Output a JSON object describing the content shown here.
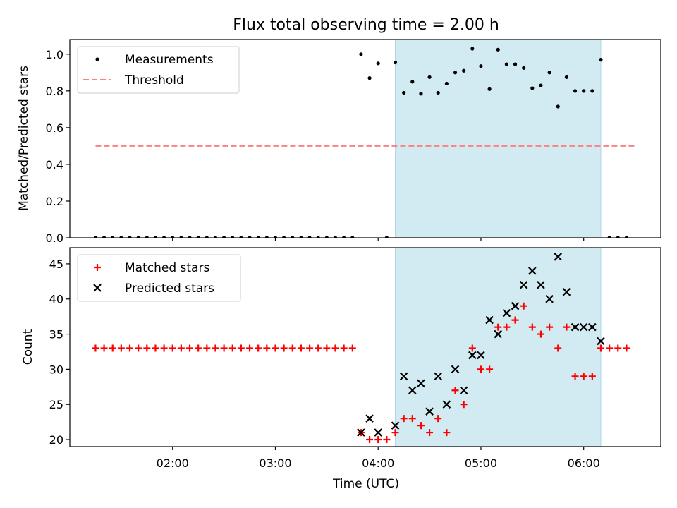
{
  "chart_data": [
    {
      "type": "scatter",
      "title": "Flux total observing time = 2.00 h",
      "ylabel": "Matched/Predicted stars",
      "xlabel": "",
      "ylim": [
        0,
        1.08
      ],
      "yticks": [
        "0.0",
        "0.2",
        "0.4",
        "0.6",
        "0.8",
        "1.0"
      ],
      "legend": {
        "placement": "top-left",
        "entries": [
          "Measurements",
          "Threshold"
        ]
      },
      "series": [
        {
          "name": "Measurements",
          "marker": "dot",
          "color": "#000000",
          "points": [
            [
              "01:15",
              0
            ],
            [
              "01:20",
              0
            ],
            [
              "01:25",
              0
            ],
            [
              "01:30",
              0
            ],
            [
              "01:35",
              0
            ],
            [
              "01:40",
              0
            ],
            [
              "01:45",
              0
            ],
            [
              "01:50",
              0
            ],
            [
              "01:55",
              0
            ],
            [
              "02:00",
              0
            ],
            [
              "02:05",
              0
            ],
            [
              "02:10",
              0
            ],
            [
              "02:15",
              0
            ],
            [
              "02:20",
              0
            ],
            [
              "02:25",
              0
            ],
            [
              "02:30",
              0
            ],
            [
              "02:35",
              0
            ],
            [
              "02:40",
              0
            ],
            [
              "02:45",
              0
            ],
            [
              "02:50",
              0
            ],
            [
              "02:55",
              0
            ],
            [
              "03:00",
              0
            ],
            [
              "03:05",
              0
            ],
            [
              "03:10",
              0
            ],
            [
              "03:15",
              0
            ],
            [
              "03:20",
              0
            ],
            [
              "03:25",
              0
            ],
            [
              "03:30",
              0
            ],
            [
              "03:35",
              0
            ],
            [
              "03:40",
              0
            ],
            [
              "03:45",
              0
            ],
            [
              "03:50",
              1.0
            ],
            [
              "03:55",
              0.87
            ],
            [
              "04:00",
              0.95
            ],
            [
              "04:05",
              0.0
            ],
            [
              "04:10",
              0.955
            ],
            [
              "04:15",
              0.79
            ],
            [
              "04:20",
              0.85
            ],
            [
              "04:25",
              0.785
            ],
            [
              "04:30",
              0.875
            ],
            [
              "04:35",
              0.79
            ],
            [
              "04:40",
              0.84
            ],
            [
              "04:45",
              0.9
            ],
            [
              "04:50",
              0.91
            ],
            [
              "04:55",
              1.03
            ],
            [
              "05:00",
              0.935
            ],
            [
              "05:05",
              0.81
            ],
            [
              "05:10",
              1.025
            ],
            [
              "05:15",
              0.945
            ],
            [
              "05:20",
              0.945
            ],
            [
              "05:25",
              0.925
            ],
            [
              "05:30",
              0.815
            ],
            [
              "05:35",
              0.83
            ],
            [
              "05:40",
              0.9
            ],
            [
              "05:45",
              0.715
            ],
            [
              "05:50",
              0.875
            ],
            [
              "05:55",
              0.8
            ],
            [
              "06:00",
              0.8
            ],
            [
              "06:05",
              0.8
            ],
            [
              "06:10",
              0.97
            ],
            [
              "06:15",
              0
            ],
            [
              "06:20",
              0
            ],
            [
              "06:25",
              0
            ]
          ]
        },
        {
          "name": "Threshold",
          "marker": "dashed-line",
          "color": "#ff7f7f",
          "points": [
            [
              "01:15",
              0.5
            ],
            [
              "06:30",
              0.5
            ]
          ]
        }
      ],
      "shaded_region": {
        "x_start": "04:10",
        "x_end": "06:10",
        "color": "#add8e6"
      }
    },
    {
      "type": "scatter",
      "title": "",
      "ylabel": "Count",
      "xlabel": "Time (UTC)",
      "ylim": [
        19,
        47.3
      ],
      "yticks": [
        "20",
        "25",
        "30",
        "35",
        "40",
        "45"
      ],
      "xticks": [
        "02:00",
        "03:00",
        "04:00",
        "05:00",
        "06:00"
      ],
      "legend": {
        "placement": "top-left",
        "entries": [
          "Matched stars",
          "Predicted stars"
        ]
      },
      "series": [
        {
          "name": "Matched stars",
          "marker": "plus",
          "color": "#ff0000",
          "points": [
            [
              "01:15",
              33
            ],
            [
              "01:20",
              33
            ],
            [
              "01:25",
              33
            ],
            [
              "01:30",
              33
            ],
            [
              "01:35",
              33
            ],
            [
              "01:40",
              33
            ],
            [
              "01:45",
              33
            ],
            [
              "01:50",
              33
            ],
            [
              "01:55",
              33
            ],
            [
              "02:00",
              33
            ],
            [
              "02:05",
              33
            ],
            [
              "02:10",
              33
            ],
            [
              "02:15",
              33
            ],
            [
              "02:20",
              33
            ],
            [
              "02:25",
              33
            ],
            [
              "02:30",
              33
            ],
            [
              "02:35",
              33
            ],
            [
              "02:40",
              33
            ],
            [
              "02:45",
              33
            ],
            [
              "02:50",
              33
            ],
            [
              "02:55",
              33
            ],
            [
              "03:00",
              33
            ],
            [
              "03:05",
              33
            ],
            [
              "03:10",
              33
            ],
            [
              "03:15",
              33
            ],
            [
              "03:20",
              33
            ],
            [
              "03:25",
              33
            ],
            [
              "03:30",
              33
            ],
            [
              "03:35",
              33
            ],
            [
              "03:40",
              33
            ],
            [
              "03:45",
              33
            ],
            [
              "03:50",
              21
            ],
            [
              "03:55",
              20
            ],
            [
              "04:00",
              20
            ],
            [
              "04:05",
              20
            ],
            [
              "04:10",
              21
            ],
            [
              "04:15",
              23
            ],
            [
              "04:20",
              23
            ],
            [
              "04:25",
              22
            ],
            [
              "04:30",
              21
            ],
            [
              "04:35",
              23
            ],
            [
              "04:40",
              21
            ],
            [
              "04:45",
              27
            ],
            [
              "04:50",
              25
            ],
            [
              "04:55",
              33
            ],
            [
              "05:00",
              30
            ],
            [
              "05:05",
              30
            ],
            [
              "05:10",
              36
            ],
            [
              "05:15",
              36
            ],
            [
              "05:20",
              37
            ],
            [
              "05:25",
              39
            ],
            [
              "05:30",
              36
            ],
            [
              "05:35",
              35
            ],
            [
              "05:40",
              36
            ],
            [
              "05:45",
              33
            ],
            [
              "05:50",
              36
            ],
            [
              "05:55",
              29
            ],
            [
              "06:00",
              29
            ],
            [
              "06:05",
              29
            ],
            [
              "06:10",
              33
            ],
            [
              "06:15",
              33
            ],
            [
              "06:20",
              33
            ],
            [
              "06:25",
              33
            ]
          ]
        },
        {
          "name": "Predicted stars",
          "marker": "x",
          "color": "#000000",
          "points": [
            [
              "03:50",
              21
            ],
            [
              "03:55",
              23
            ],
            [
              "04:00",
              21
            ],
            [
              "04:10",
              22
            ],
            [
              "04:15",
              29
            ],
            [
              "04:20",
              27
            ],
            [
              "04:25",
              28
            ],
            [
              "04:30",
              24
            ],
            [
              "04:35",
              29
            ],
            [
              "04:40",
              25
            ],
            [
              "04:45",
              30
            ],
            [
              "04:50",
              27
            ],
            [
              "04:55",
              32
            ],
            [
              "05:00",
              32
            ],
            [
              "05:05",
              37
            ],
            [
              "05:10",
              35
            ],
            [
              "05:15",
              38
            ],
            [
              "05:20",
              39
            ],
            [
              "05:25",
              42
            ],
            [
              "05:30",
              44
            ],
            [
              "05:35",
              42
            ],
            [
              "05:40",
              40
            ],
            [
              "05:45",
              46
            ],
            [
              "05:50",
              41
            ],
            [
              "05:55",
              36
            ],
            [
              "06:00",
              36
            ],
            [
              "06:05",
              36
            ],
            [
              "06:10",
              34
            ]
          ]
        }
      ],
      "shaded_region": {
        "x_start": "04:10",
        "x_end": "06:10",
        "color": "#add8e6"
      }
    }
  ],
  "x_range": [
    "01:00",
    "06:45"
  ]
}
